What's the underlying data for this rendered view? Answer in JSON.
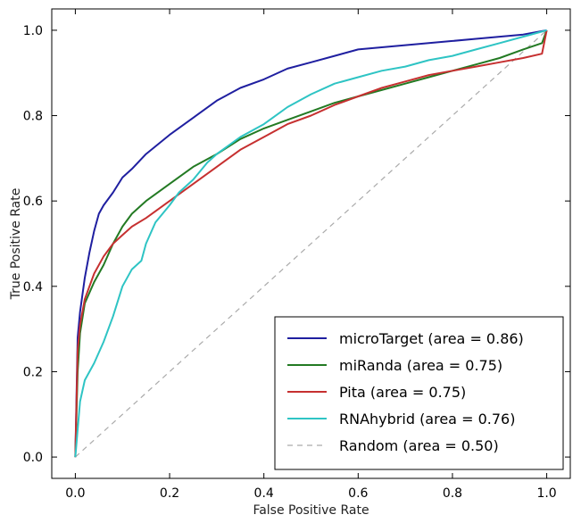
{
  "chart_data": {
    "type": "line",
    "title": "",
    "xlabel": "False Positive Rate",
    "ylabel": "True Positive Rate",
    "xlim": [
      -0.05,
      1.05
    ],
    "ylim": [
      -0.05,
      1.05
    ],
    "xticks": [
      "0.0",
      "0.2",
      "0.4",
      "0.6",
      "0.8",
      "1.0"
    ],
    "yticks": [
      "0.0",
      "0.2",
      "0.4",
      "0.6",
      "0.8",
      "1.0"
    ],
    "grid": false,
    "legend_position": "bottom-right",
    "series": [
      {
        "name": "microTarget (area = 0.86)",
        "color": "#1f1fa0",
        "dash": "solid",
        "x": [
          0,
          0.005,
          0.01,
          0.02,
          0.03,
          0.04,
          0.05,
          0.06,
          0.08,
          0.1,
          0.12,
          0.15,
          0.2,
          0.25,
          0.3,
          0.35,
          0.4,
          0.45,
          0.5,
          0.55,
          0.6,
          0.65,
          0.7,
          0.75,
          0.8,
          0.85,
          0.9,
          0.95,
          1.0
        ],
        "y": [
          0,
          0.28,
          0.34,
          0.42,
          0.48,
          0.53,
          0.57,
          0.59,
          0.62,
          0.655,
          0.675,
          0.71,
          0.755,
          0.795,
          0.835,
          0.865,
          0.885,
          0.91,
          0.925,
          0.94,
          0.955,
          0.96,
          0.965,
          0.97,
          0.975,
          0.98,
          0.985,
          0.99,
          1.0
        ]
      },
      {
        "name": "miRanda (area = 0.75)",
        "color": "#237a23",
        "dash": "solid",
        "x": [
          0,
          0.005,
          0.01,
          0.02,
          0.04,
          0.06,
          0.08,
          0.1,
          0.12,
          0.15,
          0.2,
          0.25,
          0.3,
          0.35,
          0.4,
          0.45,
          0.5,
          0.55,
          0.6,
          0.65,
          0.7,
          0.75,
          0.8,
          0.85,
          0.9,
          0.95,
          0.99,
          1.0
        ],
        "y": [
          0,
          0.2,
          0.29,
          0.36,
          0.41,
          0.45,
          0.5,
          0.54,
          0.57,
          0.6,
          0.64,
          0.68,
          0.71,
          0.745,
          0.77,
          0.79,
          0.81,
          0.83,
          0.845,
          0.86,
          0.875,
          0.89,
          0.905,
          0.92,
          0.935,
          0.955,
          0.97,
          1.0
        ]
      },
      {
        "name": "Pita (area = 0.75)",
        "color": "#c63030",
        "dash": "solid",
        "x": [
          0,
          0.005,
          0.01,
          0.02,
          0.04,
          0.06,
          0.08,
          0.1,
          0.12,
          0.15,
          0.2,
          0.25,
          0.3,
          0.35,
          0.4,
          0.45,
          0.5,
          0.55,
          0.6,
          0.65,
          0.7,
          0.75,
          0.8,
          0.85,
          0.9,
          0.95,
          0.99,
          1.0
        ],
        "y": [
          0,
          0.25,
          0.31,
          0.37,
          0.43,
          0.47,
          0.5,
          0.52,
          0.54,
          0.56,
          0.6,
          0.64,
          0.68,
          0.72,
          0.75,
          0.78,
          0.8,
          0.825,
          0.845,
          0.865,
          0.88,
          0.895,
          0.905,
          0.915,
          0.925,
          0.935,
          0.945,
          1.0
        ]
      },
      {
        "name": "RNAhybrid (area = 0.76)",
        "color": "#2ec4c4",
        "dash": "solid",
        "x": [
          0,
          0.01,
          0.02,
          0.04,
          0.06,
          0.08,
          0.1,
          0.12,
          0.14,
          0.15,
          0.17,
          0.2,
          0.22,
          0.25,
          0.28,
          0.3,
          0.35,
          0.4,
          0.45,
          0.5,
          0.55,
          0.6,
          0.65,
          0.7,
          0.75,
          0.8,
          0.85,
          0.9,
          0.95,
          1.0
        ],
        "y": [
          0,
          0.13,
          0.18,
          0.22,
          0.27,
          0.33,
          0.4,
          0.44,
          0.46,
          0.5,
          0.55,
          0.59,
          0.62,
          0.65,
          0.69,
          0.71,
          0.75,
          0.78,
          0.82,
          0.85,
          0.875,
          0.89,
          0.905,
          0.915,
          0.93,
          0.94,
          0.955,
          0.97,
          0.985,
          1.0
        ]
      },
      {
        "name": "Random (area = 0.50)",
        "color": "#aaaaaa",
        "dash": "dashed",
        "x": [
          0,
          1
        ],
        "y": [
          0,
          1
        ]
      }
    ]
  }
}
